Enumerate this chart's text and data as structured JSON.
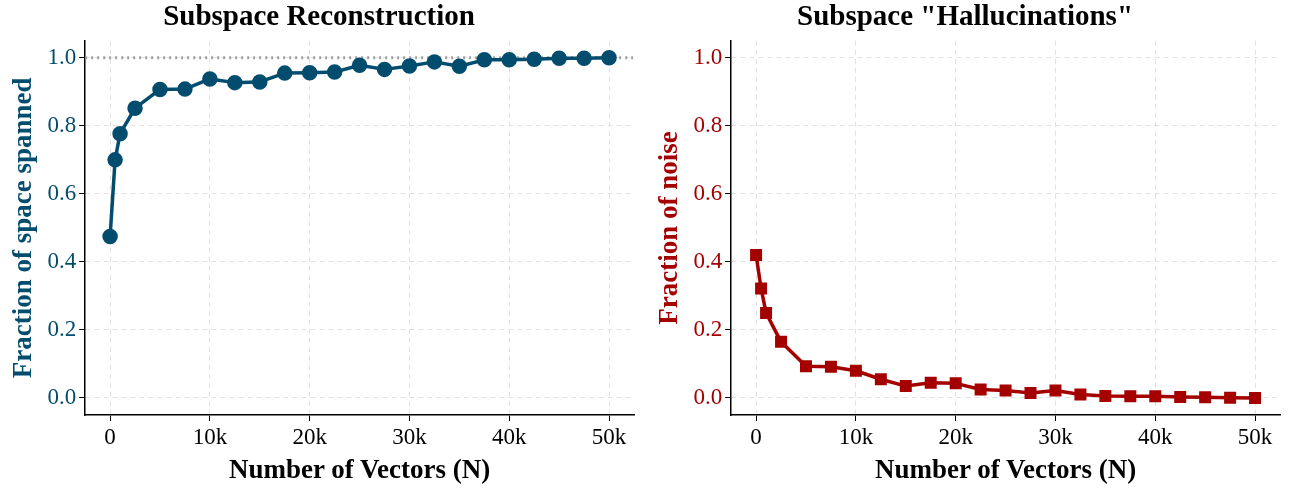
{
  "chart_data": [
    {
      "type": "line",
      "title": "Subspace Reconstruction",
      "xlabel": "Number of Vectors (N)",
      "ylabel": "Fraction of space spanned",
      "x": [
        0,
        500,
        1000,
        2500,
        5000,
        7500,
        10000,
        12500,
        15000,
        17500,
        20000,
        22500,
        25000,
        27500,
        30000,
        32500,
        35000,
        37500,
        40000,
        42500,
        45000,
        47500,
        50000
      ],
      "series": [
        {
          "color": "#024d6e",
          "values": [
            0.475,
            0.7,
            0.777,
            0.852,
            0.907,
            0.908,
            0.938,
            0.927,
            0.929,
            0.955,
            0.956,
            0.958,
            0.978,
            0.966,
            0.976,
            0.988,
            0.975,
            0.994,
            0.994,
            0.996,
            0.999,
            0.999,
            1.0
          ]
        }
      ],
      "marker": "circle",
      "line_style": "solid",
      "grid": true,
      "legend": false,
      "xlim": [
        -2500,
        52500
      ],
      "xticks": [
        0,
        {
          "value": 10000,
          "label": "10k"
        },
        {
          "value": 20000,
          "label": "20k"
        },
        {
          "value": 30000,
          "label": "30k"
        },
        {
          "value": 40000,
          "label": "40k"
        },
        {
          "value": 50000,
          "label": "50k"
        }
      ],
      "ylim": [
        -0.05,
        1.05
      ],
      "yticks": [
        {
          "value": 0,
          "label": "0.0"
        },
        {
          "value": 0.2,
          "label": "0.2"
        },
        {
          "value": 0.4,
          "label": "0.4"
        },
        {
          "value": 0.6,
          "label": "0.6"
        },
        {
          "value": 0.8,
          "label": "0.8"
        },
        {
          "value": 1,
          "label": "1.0"
        }
      ],
      "ref_lines": [
        {
          "axis": "y",
          "value": 1,
          "color": "#a0a0a0",
          "line_style": "dotted"
        }
      ]
    },
    {
      "type": "line",
      "title": "Subspace \"Hallucinations\"",
      "xlabel": "Number of Vectors (N)",
      "ylabel": "Fraction of noise",
      "x": [
        0,
        500,
        1000,
        2500,
        5000,
        7500,
        10000,
        12500,
        15000,
        17500,
        20000,
        22500,
        25000,
        27500,
        30000,
        32500,
        35000,
        37500,
        40000,
        42500,
        45000,
        47500,
        50000
      ],
      "series": [
        {
          "color": "#a50000",
          "values": [
            0.42,
            0.322,
            0.25,
            0.165,
            0.093,
            0.092,
            0.08,
            0.055,
            0.035,
            0.045,
            0.043,
            0.025,
            0.022,
            0.015,
            0.022,
            0.01,
            0.006,
            0.005,
            0.005,
            0.003,
            0.002,
            0.001,
            0.0
          ]
        }
      ],
      "marker": "square",
      "line_style": "solid",
      "grid": true,
      "legend": false,
      "xlim": [
        -2500,
        52500
      ],
      "xticks": [
        0,
        {
          "value": 10000,
          "label": "10k"
        },
        {
          "value": 20000,
          "label": "20k"
        },
        {
          "value": 30000,
          "label": "30k"
        },
        {
          "value": 40000,
          "label": "40k"
        },
        {
          "value": 50000,
          "label": "50k"
        }
      ],
      "ylim": [
        -0.05,
        1.05
      ],
      "yticks": [
        {
          "value": 0,
          "label": "0.0"
        },
        {
          "value": 0.2,
          "label": "0.2"
        },
        {
          "value": 0.4,
          "label": "0.4"
        },
        {
          "value": 0.6,
          "label": "0.6"
        },
        {
          "value": 0.8,
          "label": "0.8"
        },
        {
          "value": 1,
          "label": "1.0"
        }
      ]
    }
  ]
}
